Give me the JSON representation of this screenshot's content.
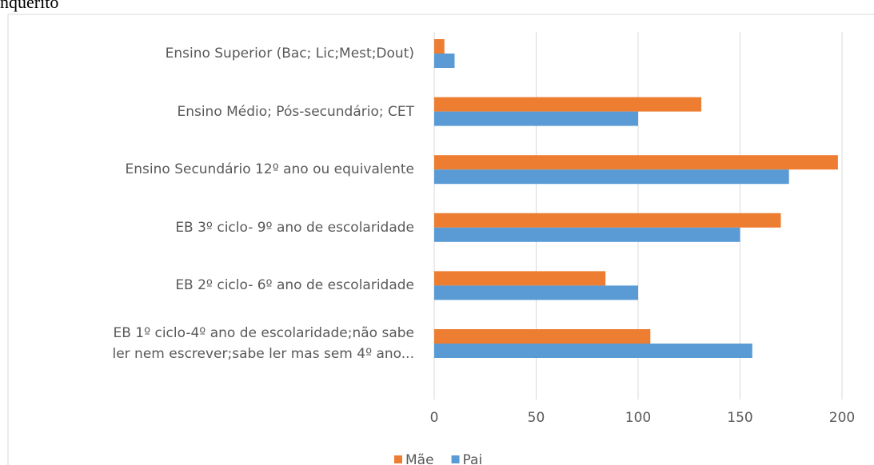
{
  "caption": "nquérito",
  "chart_data": {
    "type": "hbar",
    "categories": [
      "Ensino Superior (Bac; Lic;Mest;Dout)",
      "Ensino Médio; Pós-secundário; CET",
      "Ensino Secundário 12º ano ou equivalente",
      "EB 3º ciclo- 9º ano de escolaridade",
      "EB 2º ciclo- 6º ano de escolaridade",
      "EB 1º ciclo-4º ano de escolaridade;não sabe\nler nem escrever;sabe ler mas sem 4º ano..."
    ],
    "series": [
      {
        "name": "Mãe",
        "color": "#ed7d31",
        "values": [
          5,
          131,
          198,
          170,
          84,
          106
        ]
      },
      {
        "name": "Pai",
        "color": "#5b9bd5",
        "values": [
          10,
          100,
          174,
          150,
          100,
          156
        ]
      }
    ],
    "xlim": [
      0,
      200
    ],
    "xticks": [
      0,
      50,
      100,
      150,
      200
    ],
    "grid": true,
    "legend": "bottom"
  }
}
